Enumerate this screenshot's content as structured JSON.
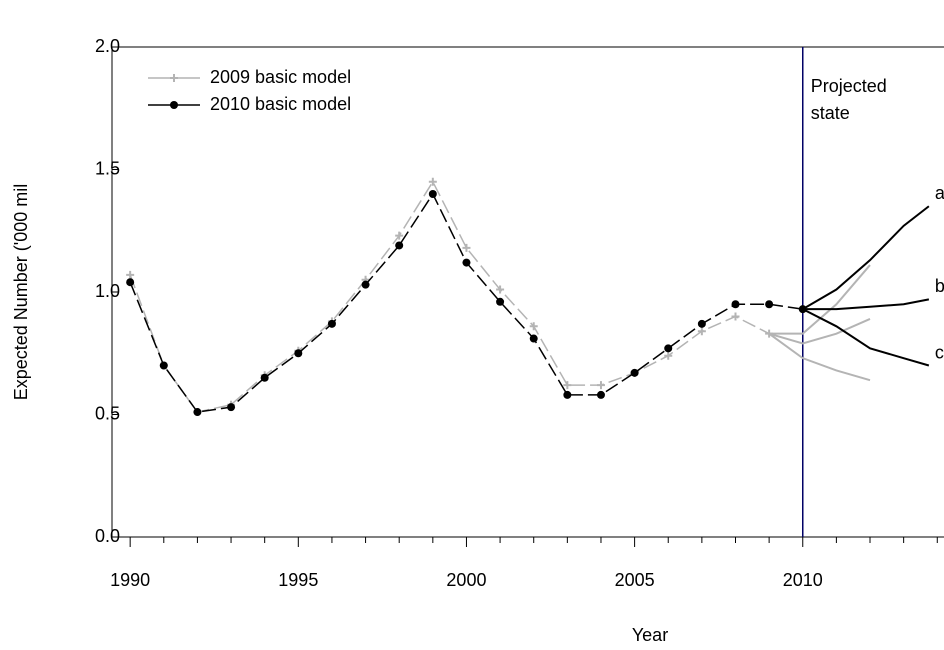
{
  "chart_data": {
    "type": "line",
    "x_label": "Year",
    "y_label": "Expected Number ('000 mil",
    "xlim": [
      1989.46,
      2014.2
    ],
    "ylim": [
      0,
      2
    ],
    "xticks": [
      1990,
      1995,
      2000,
      2005,
      2010
    ],
    "minor_xticks": [
      1991,
      1992,
      1993,
      1994,
      1996,
      1997,
      1998,
      1999,
      2001,
      2002,
      2003,
      2004,
      2006,
      2007,
      2008,
      2009,
      2011,
      2012,
      2013,
      2014
    ],
    "yticks": [
      {
        "value": 0,
        "label": "0.0"
      },
      {
        "value": 0.5,
        "label": "0.5"
      },
      {
        "value": 1,
        "label": "1.0"
      },
      {
        "value": 1.5,
        "label": "1.5"
      },
      {
        "value": 2,
        "label": "2.0"
      }
    ],
    "legend": "upper left",
    "series": [
      {
        "name": "2009 basic model",
        "color": "#b4b4b4",
        "marker": "plus",
        "x": [
          1990,
          1991,
          1992,
          1993,
          1994,
          1995,
          1996,
          1997,
          1998,
          1999,
          2000,
          2001,
          2002,
          2003,
          2004,
          2005,
          2006,
          2007,
          2008,
          2009
        ],
        "values": [
          1.07,
          0.7,
          0.51,
          0.54,
          0.66,
          0.76,
          0.88,
          1.05,
          1.23,
          1.45,
          1.18,
          1.01,
          0.86,
          0.62,
          0.62,
          0.67,
          0.74,
          0.84,
          0.9,
          0.83
        ]
      },
      {
        "name": "2010 basic model",
        "color": "#000000",
        "marker": "circle",
        "x": [
          1990,
          1991,
          1992,
          1993,
          1994,
          1995,
          1996,
          1997,
          1998,
          1999,
          2000,
          2001,
          2002,
          2003,
          2004,
          2005,
          2006,
          2007,
          2008,
          2009,
          2010
        ],
        "values": [
          1.04,
          0.7,
          0.51,
          0.53,
          0.65,
          0.75,
          0.87,
          1.03,
          1.19,
          1.4,
          1.12,
          0.96,
          0.81,
          0.58,
          0.58,
          0.67,
          0.77,
          0.87,
          0.95,
          0.95,
          0.93
        ]
      }
    ],
    "projections": [
      {
        "color": "#b4b4b4",
        "x": [
          2009,
          2010,
          2011,
          2012
        ],
        "values": [
          0.83,
          0.83,
          0.95,
          1.11
        ]
      },
      {
        "color": "#b4b4b4",
        "x": [
          2009,
          2010,
          2011,
          2012
        ],
        "values": [
          0.83,
          0.79,
          0.83,
          0.89
        ]
      },
      {
        "color": "#b4b4b4",
        "x": [
          2009,
          2010,
          2011,
          2012
        ],
        "values": [
          0.83,
          0.73,
          0.68,
          0.64
        ]
      },
      {
        "label": "a",
        "color": "#000000",
        "x": [
          2010,
          2011,
          2012,
          2013,
          2013.75
        ],
        "values": [
          0.93,
          1.01,
          1.13,
          1.27,
          1.35
        ]
      },
      {
        "label": "b",
        "color": "#000000",
        "x": [
          2010,
          2011,
          2012,
          2013,
          2013.75
        ],
        "values": [
          0.93,
          0.93,
          0.94,
          0.95,
          0.97
        ]
      },
      {
        "label": "c",
        "color": "#000000",
        "x": [
          2010,
          2011,
          2012,
          2013,
          2013.75
        ],
        "values": [
          0.93,
          0.86,
          0.77,
          0.73,
          0.7
        ]
      }
    ],
    "vline": {
      "x": 2010,
      "color": "#000066",
      "annotation": [
        "Projected",
        "state"
      ]
    }
  }
}
